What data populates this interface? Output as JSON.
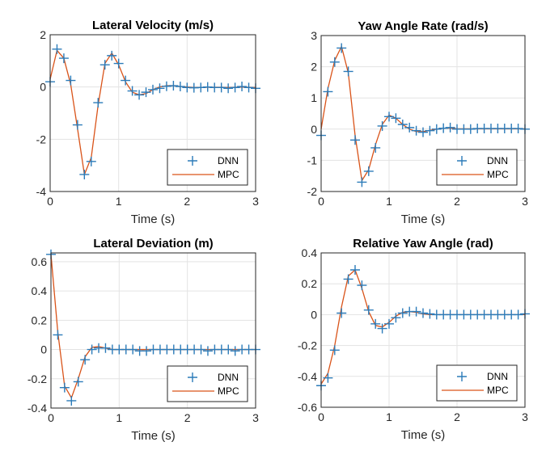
{
  "colors": {
    "DNN": "#2b7bb9",
    "MPC": "#d95319",
    "grid": "#e3e3e3",
    "axis": "#262626"
  },
  "chart_data": [
    {
      "type": "line",
      "title": "Lateral Velocity (m/s)",
      "xlabel": "Time (s)",
      "ylabel": "",
      "xlim": [
        0,
        3
      ],
      "ylim": [
        -4,
        2
      ],
      "xticks": [
        0,
        1,
        2,
        3
      ],
      "yticks": [
        -4,
        -2,
        0,
        2
      ],
      "grid": true,
      "legend": "bottom-right",
      "x": [
        0,
        0.1,
        0.2,
        0.3,
        0.4,
        0.5,
        0.6,
        0.7,
        0.8,
        0.9,
        1.0,
        1.1,
        1.2,
        1.3,
        1.4,
        1.5,
        1.6,
        1.7,
        1.8,
        1.9,
        2.0,
        2.1,
        2.2,
        2.3,
        2.4,
        2.5,
        2.6,
        2.7,
        2.8,
        2.9,
        3.0
      ],
      "series": [
        {
          "name": "DNN",
          "style": "markers-plus",
          "values": [
            0.2,
            1.45,
            1.1,
            0.25,
            -1.45,
            -3.35,
            -2.85,
            -0.6,
            0.85,
            1.2,
            0.9,
            0.25,
            -0.15,
            -0.3,
            -0.2,
            -0.1,
            -0.05,
            0.03,
            0.05,
            0.02,
            -0.02,
            -0.03,
            -0.02,
            0,
            -0.02,
            -0.02,
            -0.05,
            -0.02,
            0.02,
            -0.02,
            -0.05
          ]
        },
        {
          "name": "MPC",
          "style": "line",
          "values": [
            0.3,
            1.4,
            1.1,
            0.1,
            -1.6,
            -3.35,
            -2.7,
            -0.7,
            0.9,
            1.3,
            0.85,
            0.2,
            -0.2,
            -0.3,
            -0.25,
            -0.1,
            0,
            0.05,
            0.05,
            0.02,
            0,
            -0.02,
            -0.02,
            -0.01,
            -0.01,
            -0.01,
            -0.02,
            -0.01,
            0,
            -0.01,
            -0.02
          ]
        }
      ]
    },
    {
      "type": "line",
      "title": "Yaw Angle Rate (rad/s)",
      "xlabel": "Time (s)",
      "ylabel": "",
      "xlim": [
        0,
        3
      ],
      "ylim": [
        -2,
        3
      ],
      "xticks": [
        0,
        1,
        2,
        3
      ],
      "yticks": [
        -2,
        -1,
        0,
        1,
        2,
        3
      ],
      "grid": true,
      "legend": "bottom-right",
      "x": [
        0,
        0.1,
        0.2,
        0.3,
        0.4,
        0.5,
        0.6,
        0.7,
        0.8,
        0.9,
        1.0,
        1.1,
        1.2,
        1.3,
        1.4,
        1.5,
        1.6,
        1.7,
        1.8,
        1.9,
        2.0,
        2.1,
        2.2,
        2.3,
        2.4,
        2.5,
        2.6,
        2.7,
        2.8,
        2.9,
        3.0
      ],
      "series": [
        {
          "name": "DNN",
          "style": "markers-plus",
          "values": [
            -0.2,
            1.2,
            2.15,
            2.6,
            1.85,
            -0.35,
            -1.7,
            -1.35,
            -0.6,
            0.1,
            0.4,
            0.35,
            0.15,
            0.05,
            -0.05,
            -0.1,
            -0.05,
            0,
            0.03,
            0.05,
            0,
            0,
            0,
            0.02,
            0.02,
            0.02,
            0.02,
            0.02,
            0.02,
            0.02,
            0
          ]
        },
        {
          "name": "MPC",
          "style": "line",
          "values": [
            0,
            1.3,
            2.2,
            2.65,
            1.8,
            -0.2,
            -1.65,
            -1.3,
            -0.5,
            0.15,
            0.45,
            0.35,
            0.15,
            0,
            -0.08,
            -0.08,
            -0.04,
            0,
            0.03,
            0.03,
            0.01,
            0.01,
            0.01,
            0.01,
            0.01,
            0.01,
            0.01,
            0.01,
            0.01,
            0.01,
            0.01
          ]
        }
      ]
    },
    {
      "type": "line",
      "title": "Lateral Deviation (m)",
      "xlabel": "Time (s)",
      "ylabel": "",
      "xlim": [
        0,
        3
      ],
      "ylim": [
        -0.4,
        0.66
      ],
      "xticks": [
        0,
        1,
        2,
        3
      ],
      "yticks": [
        -0.4,
        -0.2,
        0,
        0.2,
        0.4,
        0.6
      ],
      "grid": true,
      "legend": "bottom-right",
      "x": [
        0,
        0.1,
        0.2,
        0.3,
        0.4,
        0.5,
        0.6,
        0.7,
        0.8,
        0.9,
        1.0,
        1.1,
        1.2,
        1.3,
        1.4,
        1.5,
        1.6,
        1.7,
        1.8,
        1.9,
        2.0,
        2.1,
        2.2,
        2.3,
        2.4,
        2.5,
        2.6,
        2.7,
        2.8,
        2.9,
        3.0
      ],
      "series": [
        {
          "name": "DNN",
          "style": "markers-plus",
          "values": [
            0.65,
            0.1,
            -0.26,
            -0.35,
            -0.22,
            -0.07,
            0,
            0.01,
            0.01,
            0,
            0,
            0,
            0,
            -0.01,
            -0.01,
            0,
            0,
            0,
            0,
            0,
            0,
            0,
            0,
            -0.01,
            0,
            0,
            0,
            -0.01,
            0,
            0,
            0
          ]
        },
        {
          "name": "MPC",
          "style": "line",
          "values": [
            0.65,
            0.12,
            -0.25,
            -0.33,
            -0.2,
            -0.05,
            0.015,
            0.02,
            0.01,
            0,
            0,
            0,
            0,
            0,
            0,
            0,
            0,
            0,
            0,
            0,
            0,
            0,
            0,
            0,
            0,
            0,
            0,
            0,
            0,
            0,
            0
          ]
        }
      ]
    },
    {
      "type": "line",
      "title": "Relative Yaw Angle (rad)",
      "xlabel": "Time (s)",
      "ylabel": "",
      "xlim": [
        0,
        3
      ],
      "ylim": [
        -0.6,
        0.4
      ],
      "xticks": [
        0,
        1,
        2,
        3
      ],
      "yticks": [
        -0.6,
        -0.4,
        -0.2,
        0,
        0.2,
        0.4
      ],
      "grid": true,
      "legend": "bottom-right",
      "x": [
        0,
        0.1,
        0.2,
        0.3,
        0.4,
        0.5,
        0.6,
        0.7,
        0.8,
        0.9,
        1.0,
        1.1,
        1.2,
        1.3,
        1.4,
        1.5,
        1.6,
        1.7,
        1.8,
        1.9,
        2.0,
        2.1,
        2.2,
        2.3,
        2.4,
        2.5,
        2.6,
        2.7,
        2.8,
        2.9,
        3.0
      ],
      "series": [
        {
          "name": "DNN",
          "style": "markers-plus",
          "values": [
            -0.46,
            -0.41,
            -0.23,
            0.01,
            0.23,
            0.29,
            0.19,
            0.03,
            -0.06,
            -0.09,
            -0.06,
            -0.02,
            0.01,
            0.02,
            0.02,
            0.01,
            0.005,
            0,
            0,
            0,
            0,
            0,
            0,
            0,
            0,
            0,
            0,
            0,
            0,
            0,
            0.005
          ]
        },
        {
          "name": "MPC",
          "style": "line",
          "values": [
            -0.45,
            -0.38,
            -0.2,
            0.05,
            0.25,
            0.29,
            0.17,
            0.02,
            -0.07,
            -0.08,
            -0.05,
            -0.01,
            0.015,
            0.02,
            0.015,
            0.005,
            0,
            0,
            0,
            0,
            0,
            0,
            0,
            0,
            0,
            0,
            0,
            0,
            0,
            0,
            0
          ]
        }
      ]
    }
  ]
}
